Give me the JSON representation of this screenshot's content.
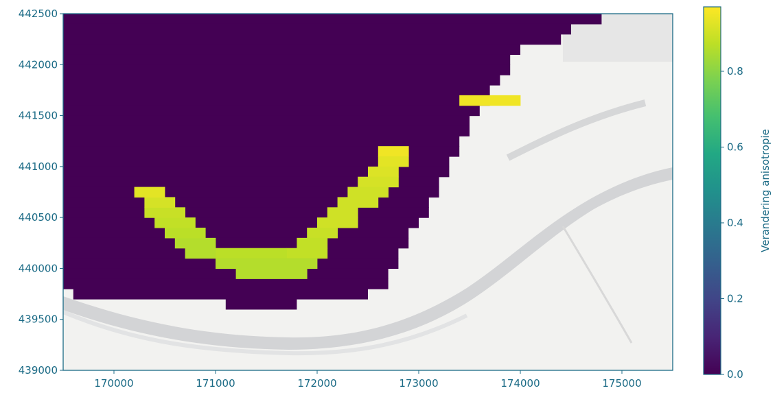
{
  "chart_data": {
    "type": "heatmap",
    "title": "",
    "xlabel": "",
    "ylabel": "",
    "xlim": [
      169500,
      175500
    ],
    "ylim": [
      439000,
      442500
    ],
    "x_ticks": [
      170000,
      171000,
      172000,
      173000,
      174000,
      175000
    ],
    "y_ticks": [
      439000,
      439500,
      440000,
      440500,
      441000,
      441500,
      442000,
      442500
    ],
    "grid": false,
    "colorbar": {
      "label": "Verandering anisotropie",
      "range": [
        0.0,
        0.97
      ],
      "ticks": [
        0.0,
        0.2,
        0.4,
        0.6,
        0.8
      ],
      "tick_labels": [
        "0.0",
        "0.2",
        "0.4",
        "0.6",
        "0.8"
      ],
      "colormap": "viridis"
    },
    "cell_size": 100,
    "background_value": 0.0,
    "domain_rows": [
      {
        "y": 442400,
        "x_end": 174800
      },
      {
        "y": 442300,
        "x_end": 174500
      },
      {
        "y": 442200,
        "x_end": 174400
      },
      {
        "y": 442100,
        "x_end": 174000
      },
      {
        "y": 442000,
        "x_end": 173900
      },
      {
        "y": 441900,
        "x_end": 173900
      },
      {
        "y": 441800,
        "x_end": 173800
      },
      {
        "y": 441700,
        "x_end": 173700
      },
      {
        "y": 441600,
        "x_end": 173700
      },
      {
        "y": 441500,
        "x_end": 173600
      },
      {
        "y": 441400,
        "x_end": 173500
      },
      {
        "y": 441300,
        "x_end": 173500
      },
      {
        "y": 441200,
        "x_end": 173400
      },
      {
        "y": 441100,
        "x_end": 173400
      },
      {
        "y": 441000,
        "x_end": 173300
      },
      {
        "y": 440900,
        "x_end": 173300
      },
      {
        "y": 440800,
        "x_end": 173200
      },
      {
        "y": 440700,
        "x_end": 173200
      },
      {
        "y": 440600,
        "x_end": 173100
      },
      {
        "y": 440500,
        "x_end": 173100
      },
      {
        "y": 440400,
        "x_end": 173000
      },
      {
        "y": 440300,
        "x_end": 172900
      },
      {
        "y": 440200,
        "x_end": 172900
      },
      {
        "y": 440100,
        "x_end": 172800
      },
      {
        "y": 440000,
        "x_end": 172800
      },
      {
        "y": 439900,
        "x_end": 172700
      },
      {
        "y": 439800,
        "x_end": 172700
      },
      {
        "y": 439700,
        "x_end": 172500,
        "x_start": 169600
      },
      {
        "y": 439600,
        "x_end": 171800,
        "x_start": 171100
      }
    ],
    "cells": [
      {
        "x": 173400,
        "y": 441600,
        "v": 0.95,
        "w": 6
      },
      {
        "x": 172600,
        "y": 441100,
        "v": 0.95,
        "w": 3
      },
      {
        "x": 172600,
        "y": 441000,
        "v": 0.93,
        "w": 3
      },
      {
        "x": 172500,
        "y": 440900,
        "v": 0.92,
        "w": 3
      },
      {
        "x": 172400,
        "y": 440800,
        "v": 0.91,
        "w": 4
      },
      {
        "x": 172300,
        "y": 440700,
        "v": 0.9,
        "w": 4
      },
      {
        "x": 172200,
        "y": 440600,
        "v": 0.9,
        "w": 4
      },
      {
        "x": 172100,
        "y": 440500,
        "v": 0.9,
        "w": 3
      },
      {
        "x": 172000,
        "y": 440400,
        "v": 0.9,
        "w": 4
      },
      {
        "x": 171900,
        "y": 440300,
        "v": 0.89,
        "w": 3
      },
      {
        "x": 171800,
        "y": 440200,
        "v": 0.88,
        "w": 3
      },
      {
        "x": 171700,
        "y": 440100,
        "v": 0.88,
        "w": 4
      },
      {
        "x": 171000,
        "y": 440100,
        "v": 0.87,
        "w": 7
      },
      {
        "x": 170700,
        "y": 440100,
        "v": 0.86,
        "w": 3
      },
      {
        "x": 170600,
        "y": 440200,
        "v": 0.86,
        "w": 4
      },
      {
        "x": 170500,
        "y": 440300,
        "v": 0.87,
        "w": 4
      },
      {
        "x": 170400,
        "y": 440400,
        "v": 0.88,
        "w": 4
      },
      {
        "x": 170300,
        "y": 440500,
        "v": 0.89,
        "w": 4
      },
      {
        "x": 170300,
        "y": 440600,
        "v": 0.91,
        "w": 3
      },
      {
        "x": 170200,
        "y": 440700,
        "v": 0.93,
        "w": 3
      },
      {
        "x": 171000,
        "y": 440000,
        "v": 0.86,
        "w": 10
      },
      {
        "x": 171200,
        "y": 439900,
        "v": 0.86,
        "w": 7
      }
    ]
  }
}
